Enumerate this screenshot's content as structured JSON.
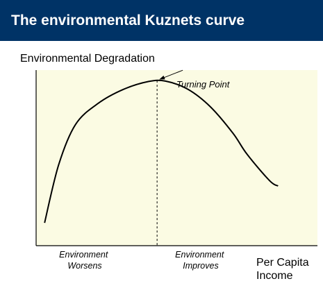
{
  "title": "The environmental Kuznets curve",
  "colors": {
    "title_bg": "#003366",
    "plot_bg": "#fbfbe3",
    "curve": "#000000"
  },
  "chart_data": {
    "type": "line",
    "title": "The environmental Kuznets curve",
    "ylabel": "Environmental Degradation",
    "xlabel": "Per Capita Income",
    "xlabel_lines": [
      "Per Capita",
      "Income"
    ],
    "xlim": [
      0,
      10
    ],
    "ylim": [
      0,
      10
    ],
    "grid": false,
    "series": [
      {
        "x": [
          0.3,
          0.8,
          1.4,
          2.2,
          3.1,
          4.0,
          4.6,
          5.4,
          6.2,
          7.0,
          7.5,
          8.3,
          8.6
        ],
        "y": [
          1.3,
          4.6,
          6.9,
          8.1,
          8.9,
          9.35,
          9.37,
          8.9,
          7.9,
          6.4,
          5.2,
          3.7,
          3.4
        ]
      }
    ],
    "turning_point": {
      "x": 4.3,
      "y": 9.4,
      "label": "Turning Point"
    },
    "annotations": [
      {
        "lines": [
          "Environment",
          "Worsens"
        ]
      },
      {
        "lines": [
          "Environment",
          "Improves"
        ]
      }
    ]
  }
}
